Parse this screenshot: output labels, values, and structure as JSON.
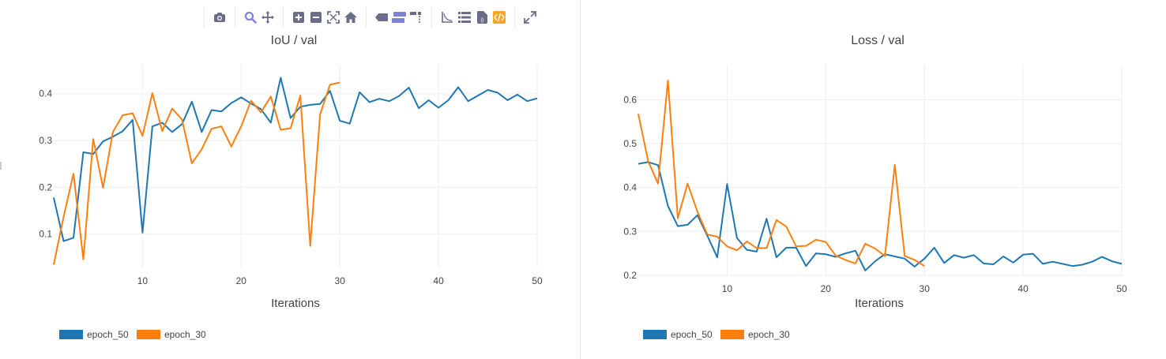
{
  "colors": {
    "epoch_50": "#1f77b4",
    "epoch_30": "#ff7f0e",
    "grid": "#eeeeee",
    "axis_text": "#444444",
    "modebar_icon": "#6b6b8a",
    "modebar_active": "#7b84d8",
    "modebar_orange": "#f5a623"
  },
  "modebar": {
    "groups": [
      [
        "camera-icon"
      ],
      [
        "zoom-icon",
        "pan-icon"
      ],
      [
        "zoom-in-icon",
        "zoom-out-icon",
        "autoscale-icon",
        "reset-axes-icon"
      ],
      [
        "spike-lines-icon",
        "hover-closest-icon",
        "hover-compare-icon"
      ],
      [
        "axis-icon",
        "table-icon",
        "document-icon",
        "code-icon"
      ],
      [
        "expand-icon"
      ]
    ]
  },
  "chart_data": [
    {
      "type": "line",
      "title": "IoU / val",
      "xlabel": "Iterations",
      "ylabel": "",
      "xlim": [
        1,
        50
      ],
      "ylim": [
        0.027,
        0.445
      ],
      "xticks": [
        10,
        20,
        30,
        40,
        50
      ],
      "yticks": [
        0.1,
        0.2,
        0.3,
        0.4
      ],
      "ytick_labels": [
        "0.1",
        "0.2",
        "0.3",
        "0.4"
      ],
      "grid": true,
      "legend": "bottom-left",
      "series": [
        {
          "name": "epoch_50",
          "color": "#1f77b4",
          "x": [
            1,
            2,
            3,
            4,
            5,
            6,
            7,
            8,
            9,
            10,
            11,
            12,
            13,
            14,
            15,
            16,
            17,
            18,
            19,
            20,
            21,
            22,
            23,
            24,
            25,
            26,
            27,
            28,
            29,
            30,
            31,
            32,
            33,
            34,
            35,
            36,
            37,
            38,
            39,
            40,
            41,
            42,
            43,
            44,
            45,
            46,
            47,
            48,
            49,
            50
          ],
          "values": [
            0.178,
            0.085,
            0.092,
            0.275,
            0.271,
            0.298,
            0.308,
            0.32,
            0.344,
            0.103,
            0.33,
            0.338,
            0.318,
            0.335,
            0.383,
            0.318,
            0.365,
            0.362,
            0.38,
            0.392,
            0.379,
            0.367,
            0.338,
            0.434,
            0.348,
            0.372,
            0.376,
            0.378,
            0.406,
            0.342,
            0.336,
            0.403,
            0.382,
            0.389,
            0.384,
            0.395,
            0.413,
            0.369,
            0.386,
            0.37,
            0.386,
            0.414,
            0.384,
            0.396,
            0.408,
            0.402,
            0.386,
            0.398,
            0.384,
            0.39
          ]
        },
        {
          "name": "epoch_30",
          "color": "#ff7f0e",
          "x": [
            1,
            2,
            3,
            4,
            5,
            6,
            7,
            8,
            9,
            10,
            11,
            12,
            13,
            14,
            15,
            16,
            17,
            18,
            19,
            20,
            21,
            22,
            23,
            24,
            25,
            26,
            27,
            28,
            29,
            30
          ],
          "values": [
            0.035,
            0.137,
            0.229,
            0.046,
            0.303,
            0.199,
            0.318,
            0.354,
            0.358,
            0.31,
            0.401,
            0.32,
            0.368,
            0.345,
            0.251,
            0.281,
            0.325,
            0.33,
            0.287,
            0.33,
            0.385,
            0.36,
            0.394,
            0.323,
            0.326,
            0.396,
            0.075,
            0.356,
            0.419,
            0.424
          ]
        }
      ]
    },
    {
      "type": "line",
      "title": "Loss / val",
      "xlabel": "Iterations",
      "ylabel": "",
      "xlim": [
        1,
        50
      ],
      "ylim": [
        0.198,
        0.662
      ],
      "xticks": [
        10,
        20,
        30,
        40,
        50
      ],
      "yticks": [
        0.2,
        0.3,
        0.4,
        0.5,
        0.6
      ],
      "ytick_labels": [
        "0.2",
        "0.3",
        "0.4",
        "0.5",
        "0.6"
      ],
      "grid": true,
      "legend": "bottom-left",
      "series": [
        {
          "name": "epoch_50",
          "color": "#1f77b4",
          "x": [
            1,
            2,
            3,
            4,
            5,
            6,
            7,
            8,
            9,
            10,
            11,
            12,
            13,
            14,
            15,
            16,
            17,
            18,
            19,
            20,
            21,
            22,
            23,
            24,
            25,
            26,
            27,
            28,
            29,
            30,
            31,
            32,
            33,
            34,
            35,
            36,
            37,
            38,
            39,
            40,
            41,
            42,
            43,
            44,
            45,
            46,
            47,
            48,
            49,
            50
          ],
          "values": [
            0.454,
            0.458,
            0.451,
            0.358,
            0.312,
            0.315,
            0.337,
            0.29,
            0.241,
            0.408,
            0.285,
            0.258,
            0.254,
            0.329,
            0.241,
            0.263,
            0.263,
            0.221,
            0.25,
            0.248,
            0.242,
            0.25,
            0.256,
            0.211,
            0.232,
            0.248,
            0.243,
            0.238,
            0.22,
            0.238,
            0.263,
            0.228,
            0.246,
            0.24,
            0.246,
            0.227,
            0.225,
            0.243,
            0.229,
            0.247,
            0.249,
            0.226,
            0.231,
            0.226,
            0.221,
            0.224,
            0.231,
            0.242,
            0.232,
            0.226
          ]
        },
        {
          "name": "epoch_30",
          "color": "#ff7f0e",
          "x": [
            1,
            2,
            3,
            4,
            5,
            6,
            7,
            8,
            9,
            10,
            11,
            12,
            13,
            14,
            15,
            16,
            17,
            18,
            19,
            20,
            21,
            22,
            23,
            24,
            25,
            26,
            27,
            28,
            29,
            30
          ],
          "values": [
            0.568,
            0.46,
            0.409,
            0.644,
            0.33,
            0.409,
            0.345,
            0.293,
            0.288,
            0.266,
            0.257,
            0.277,
            0.262,
            0.262,
            0.326,
            0.311,
            0.266,
            0.267,
            0.281,
            0.276,
            0.245,
            0.235,
            0.227,
            0.272,
            0.261,
            0.244,
            0.452,
            0.244,
            0.235,
            0.221
          ]
        }
      ]
    }
  ]
}
